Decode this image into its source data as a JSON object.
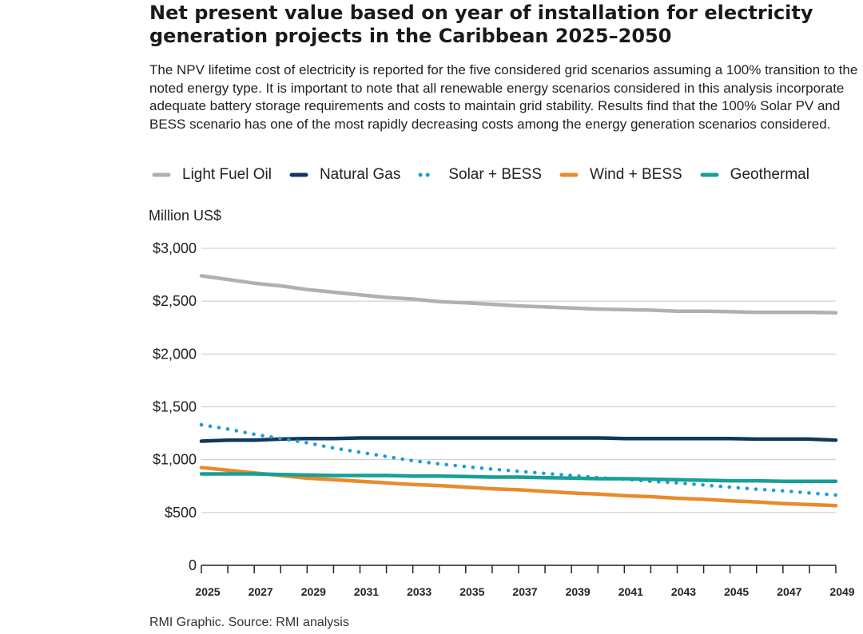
{
  "title": "Net present value based on year of installation for electricity generation projects in the Caribbean 2025–2050",
  "subtitle": "The NPV lifetime cost of electricity is reported for the five considered grid scenarios assuming a 100% transition to the noted energy type. It is important to note that all renewable energy scenarios considered in this analysis incorporate adequate battery storage requirements and costs to maintain grid stability. Results find that the 100% Solar PV and BESS scenario has one of the most rapidly decreasing costs among the energy generation scenarios considered.",
  "source": "RMI Graphic. Source: RMI analysis",
  "chart_data": {
    "type": "line",
    "ylabel": "Million US$",
    "xlabel": "",
    "ylim": [
      0,
      3000
    ],
    "xlim": [
      2025,
      2049
    ],
    "yticks": [
      {
        "value": 0,
        "label": "0"
      },
      {
        "value": 500,
        "label": "$500"
      },
      {
        "value": 1000,
        "label": "$1,000"
      },
      {
        "value": 1500,
        "label": "$1,500"
      },
      {
        "value": 2000,
        "label": "$2,000"
      },
      {
        "value": 2500,
        "label": "$2,500"
      },
      {
        "value": 3000,
        "label": "$3,000"
      }
    ],
    "xticks": [
      "2025",
      "2027",
      "2029",
      "2031",
      "2033",
      "2035",
      "2037",
      "2039",
      "2041",
      "2043",
      "2045",
      "2047",
      "2049"
    ],
    "grid": true,
    "legend_position": "top",
    "x": [
      2025,
      2026,
      2027,
      2028,
      2029,
      2030,
      2031,
      2032,
      2033,
      2034,
      2035,
      2036,
      2037,
      2038,
      2039,
      2040,
      2041,
      2042,
      2043,
      2044,
      2045,
      2046,
      2047,
      2048,
      2049
    ],
    "series": [
      {
        "name": "Light Fuel Oil",
        "color": "#b0b0b0",
        "style": "solid",
        "values": [
          2740,
          2705,
          2670,
          2645,
          2610,
          2585,
          2560,
          2535,
          2520,
          2495,
          2485,
          2470,
          2455,
          2445,
          2435,
          2425,
          2420,
          2415,
          2405,
          2405,
          2400,
          2395,
          2395,
          2395,
          2390
        ]
      },
      {
        "name": "Natural Gas",
        "color": "#10375c",
        "style": "solid",
        "values": [
          1175,
          1185,
          1185,
          1195,
          1200,
          1200,
          1205,
          1205,
          1205,
          1205,
          1205,
          1205,
          1205,
          1205,
          1205,
          1205,
          1200,
          1200,
          1200,
          1200,
          1200,
          1195,
          1195,
          1195,
          1185
        ]
      },
      {
        "name": "Solar + BESS",
        "color": "#1e9ad6",
        "style": "dotted",
        "values": [
          1330,
          1290,
          1240,
          1200,
          1160,
          1110,
          1070,
          1030,
          990,
          960,
          935,
          910,
          890,
          870,
          850,
          830,
          815,
          795,
          780,
          760,
          740,
          720,
          705,
          685,
          665
        ]
      },
      {
        "name": "Wind + BESS",
        "color": "#e98a2b",
        "style": "solid",
        "values": [
          925,
          900,
          875,
          850,
          825,
          810,
          795,
          780,
          765,
          755,
          740,
          725,
          715,
          700,
          685,
          675,
          660,
          650,
          635,
          625,
          610,
          600,
          585,
          575,
          565
        ]
      },
      {
        "name": "Geothermal",
        "color": "#16a096",
        "style": "solid",
        "values": [
          865,
          865,
          865,
          860,
          855,
          850,
          850,
          850,
          845,
          845,
          840,
          835,
          835,
          830,
          825,
          820,
          820,
          815,
          810,
          805,
          800,
          800,
          795,
          795,
          795
        ]
      }
    ]
  }
}
